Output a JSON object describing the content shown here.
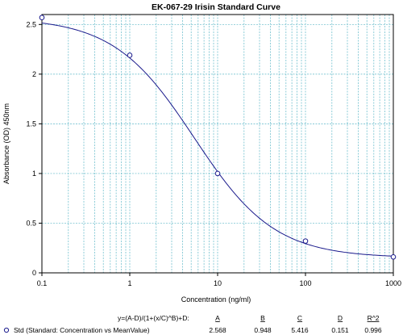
{
  "chart_data": {
    "type": "scatter",
    "title": "EK-067-29 Irisin Standard Curve",
    "xlabel": "Concentration (ng/ml)",
    "ylabel": "Absorbance (OD) 450nm",
    "x_scale": "log",
    "xlim": [
      0.1,
      1000
    ],
    "ylim": [
      0,
      2.6
    ],
    "x_ticks": [
      "0.1",
      "1",
      "10",
      "100",
      "1000"
    ],
    "y_ticks": [
      "0",
      "0.5",
      "1",
      "1.5",
      "2",
      "2.5"
    ],
    "grid": true,
    "series": [
      {
        "name": "Std (Standard: Concentration vs MeanValue)",
        "x": [
          0.1,
          1,
          10,
          100,
          1000
        ],
        "y": [
          2.57,
          2.19,
          1.0,
          0.32,
          0.16
        ]
      }
    ],
    "fit": {
      "equation": "y=(A-D)/(1+(x/C)^B)+D:",
      "param_names": [
        "A",
        "B",
        "C",
        "D",
        "R^2"
      ],
      "param_values": [
        "2.568",
        "0.948",
        "5.416",
        "0.151",
        "0.996"
      ],
      "A": 2.568,
      "B": 0.948,
      "C": 5.416,
      "D": 0.151
    },
    "colors": {
      "grid": "#5fb8c8",
      "curve": "#1a1a8c",
      "marker": "#1a1a8c"
    }
  }
}
